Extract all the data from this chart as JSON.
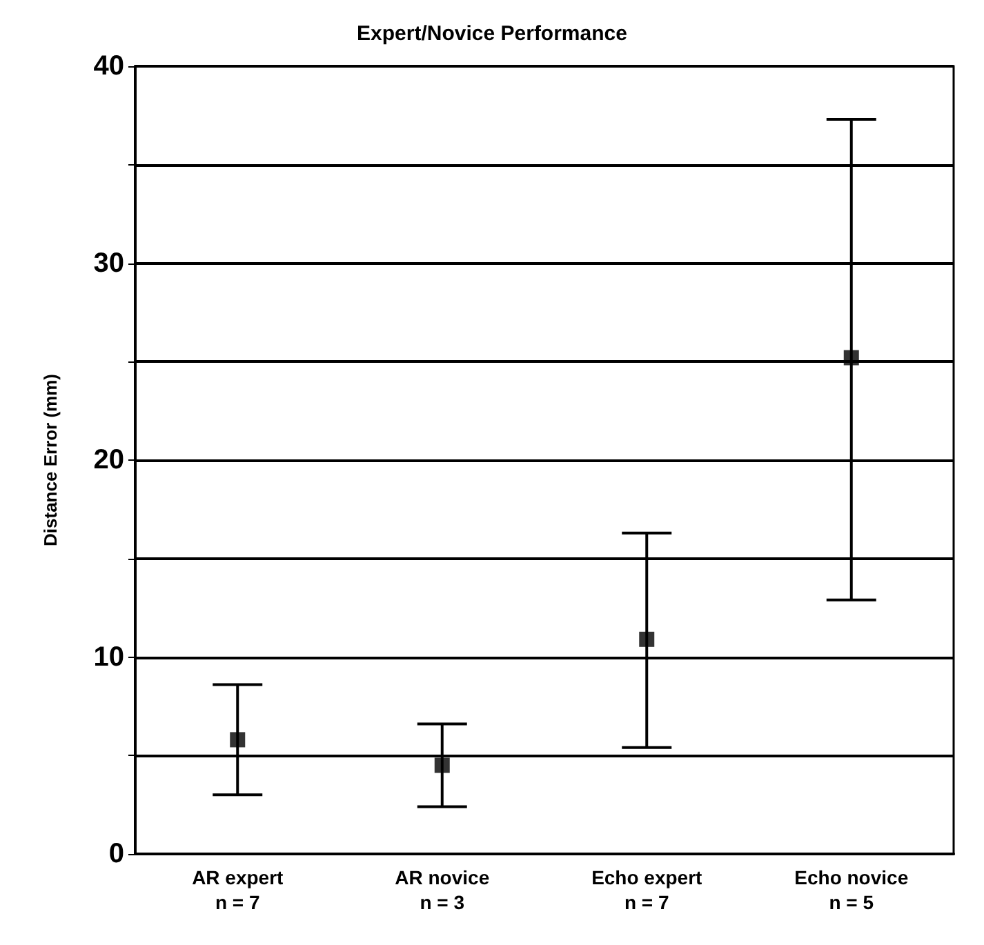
{
  "chart_data": {
    "type": "scatter",
    "title": "Expert/Novice Performance",
    "ylabel": "Distance Error (mm)",
    "categories": [
      "AR expert\nn = 7",
      "AR novice\nn = 3",
      "Echo expert\nn = 7",
      "Echo novice\nn = 5"
    ],
    "series": [
      {
        "color": "#000000",
        "values": [
          5.8,
          4.5,
          10.9,
          25.2
        ],
        "errors": [
          [
            3.0,
            8.6
          ],
          [
            2.4,
            6.6
          ],
          [
            5.4,
            16.3
          ],
          [
            12.9,
            37.3
          ]
        ]
      }
    ],
    "ylim": [
      0,
      40
    ],
    "yticks": [
      0,
      {
        "value": 5,
        "label": null
      },
      10,
      {
        "value": 15,
        "label": null
      },
      20,
      {
        "value": 25,
        "label": null
      },
      30,
      {
        "value": 35,
        "label": null
      },
      40
    ],
    "grid": "y",
    "marker": "square"
  }
}
